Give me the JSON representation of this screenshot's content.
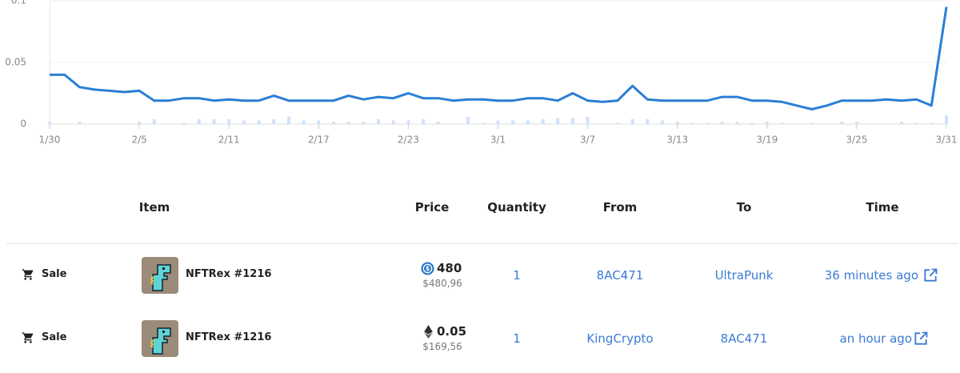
{
  "chart_data": {
    "type": "line",
    "categories": [
      "1/30",
      null,
      null,
      null,
      null,
      null,
      "2/5",
      null,
      null,
      null,
      null,
      null,
      "2/11",
      null,
      null,
      null,
      null,
      null,
      "2/17",
      null,
      null,
      null,
      null,
      null,
      "2/23",
      null,
      null,
      null,
      null,
      null,
      "3/1",
      null,
      null,
      null,
      null,
      null,
      "3/7",
      null,
      null,
      null,
      null,
      null,
      "3/13",
      null,
      null,
      null,
      null,
      null,
      "3/19",
      null,
      null,
      null,
      null,
      null,
      "3/25",
      null,
      null,
      null,
      null,
      null,
      "3/31"
    ],
    "series": [
      {
        "type": "line",
        "color": "#2a7fd6",
        "values": [
          0.04,
          0.04,
          0.03,
          0.028,
          0.027,
          0.026,
          0.027,
          0.019,
          0.019,
          0.021,
          0.021,
          0.019,
          0.02,
          0.019,
          0.019,
          0.023,
          0.019,
          0.019,
          0.019,
          0.019,
          0.023,
          0.02,
          0.022,
          0.021,
          0.025,
          0.021,
          0.021,
          0.019,
          0.02,
          0.02,
          0.019,
          0.019,
          0.021,
          0.021,
          0.019,
          0.025,
          0.019,
          0.018,
          0.019,
          0.031,
          0.02,
          0.019,
          0.019,
          0.019,
          0.019,
          0.022,
          0.022,
          0.019,
          0.019,
          0.018,
          0.015,
          0.012,
          0.015,
          0.019,
          0.019,
          0.019,
          0.02,
          0.019,
          0.02,
          0.015,
          0.095
        ]
      },
      {
        "type": "bar",
        "axis": "y2",
        "color": "#cfe2f8",
        "values": [
          2,
          0,
          2,
          0,
          0,
          0,
          2,
          4,
          0,
          1,
          4,
          4,
          4,
          3,
          3,
          4,
          6,
          3,
          3,
          2,
          2,
          2,
          4,
          3,
          3,
          4,
          2,
          0,
          6,
          1,
          3,
          3,
          3,
          4,
          5,
          5,
          6,
          0,
          1,
          4,
          4,
          3,
          2,
          1,
          1,
          2,
          2,
          1,
          2,
          1,
          0,
          1,
          0,
          2,
          2,
          0,
          0,
          2,
          1,
          1,
          7
        ]
      }
    ],
    "ylim": [
      0,
      0.1
    ],
    "yticks": [
      0,
      0.05,
      0.1
    ],
    "y2lim": [
      0,
      100
    ],
    "grid": true
  },
  "table": {
    "headers": [
      "Item",
      "Price",
      "Quantity",
      "From",
      "To",
      "Time"
    ],
    "rows": [
      {
        "event": "Sale",
        "item": "NFTRex #1216",
        "price": "480",
        "price_usd": "$480,96",
        "quantity": "1",
        "from": "8AC471",
        "to": "UltraPunk",
        "time": "36 minutes ago"
      },
      {
        "event": "Sale",
        "item": "NFTRex #1216",
        "price": "0.05",
        "price_usd": "$169,56",
        "quantity": "1",
        "from": "KingCrypto",
        "to": "8AC471",
        "time": "an hour ago"
      }
    ]
  }
}
